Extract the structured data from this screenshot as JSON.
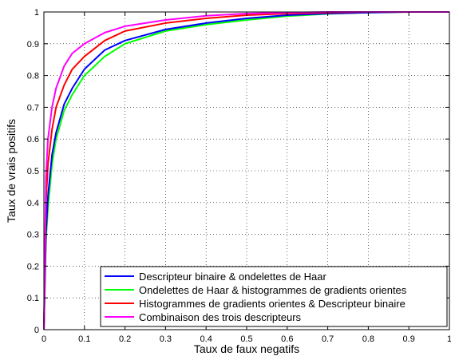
{
  "chart_data": {
    "type": "line",
    "title": "",
    "xlabel": "Taux de faux negatifs",
    "ylabel": "Taux de vrais positifs",
    "xlim": [
      0,
      1
    ],
    "ylim": [
      0,
      1
    ],
    "xticks": [
      "0",
      "0.1",
      "0.2",
      "0.3",
      "0.4",
      "0.5",
      "0.6",
      "0.7",
      "0.8",
      "0.9",
      "1"
    ],
    "yticks": [
      "0",
      "0.1",
      "0.2",
      "0.3",
      "0.4",
      "0.5",
      "0.6",
      "0.7",
      "0.8",
      "0.9",
      "1"
    ],
    "grid": true,
    "legend_position": "bottom-right",
    "series": [
      {
        "name": "Descripteur binaire & ondelettes de Haar",
        "color": "#0000ff",
        "x": [
          0,
          0.005,
          0.01,
          0.02,
          0.03,
          0.05,
          0.07,
          0.1,
          0.15,
          0.2,
          0.3,
          0.4,
          0.5,
          0.6,
          0.7,
          0.8,
          0.9,
          1
        ],
        "y": [
          0,
          0.3,
          0.42,
          0.55,
          0.62,
          0.71,
          0.76,
          0.82,
          0.88,
          0.91,
          0.945,
          0.965,
          0.98,
          0.99,
          0.995,
          0.998,
          1,
          1
        ]
      },
      {
        "name": "Ondelettes de Haar & histogrammes de gradients orientes",
        "color": "#00ff00",
        "x": [
          0,
          0.005,
          0.01,
          0.02,
          0.03,
          0.05,
          0.07,
          0.1,
          0.15,
          0.2,
          0.3,
          0.4,
          0.5,
          0.6,
          0.7,
          0.8,
          0.9,
          1
        ],
        "y": [
          0,
          0.28,
          0.38,
          0.52,
          0.6,
          0.69,
          0.74,
          0.8,
          0.86,
          0.9,
          0.94,
          0.96,
          0.975,
          0.987,
          0.994,
          0.998,
          1,
          1
        ]
      },
      {
        "name": "Histogrammes de gradients orientes & Descripteur binaire",
        "color": "#ff0000",
        "x": [
          0,
          0.005,
          0.01,
          0.02,
          0.03,
          0.05,
          0.07,
          0.1,
          0.15,
          0.2,
          0.3,
          0.4,
          0.5,
          0.6,
          0.7,
          0.8,
          0.9,
          1
        ],
        "y": [
          0,
          0.4,
          0.52,
          0.63,
          0.7,
          0.77,
          0.82,
          0.86,
          0.91,
          0.94,
          0.965,
          0.98,
          0.99,
          0.995,
          0.998,
          1,
          1,
          1
        ]
      },
      {
        "name": "Combinaison des trois descripteurs",
        "color": "#ff00ff",
        "x": [
          0,
          0.005,
          0.01,
          0.02,
          0.03,
          0.05,
          0.07,
          0.1,
          0.15,
          0.2,
          0.3,
          0.4,
          0.5,
          0.6,
          0.7,
          0.8,
          0.9,
          1
        ],
        "y": [
          0,
          0.48,
          0.6,
          0.7,
          0.76,
          0.83,
          0.87,
          0.9,
          0.935,
          0.955,
          0.975,
          0.988,
          0.995,
          0.998,
          1,
          1,
          1,
          1
        ]
      }
    ]
  }
}
